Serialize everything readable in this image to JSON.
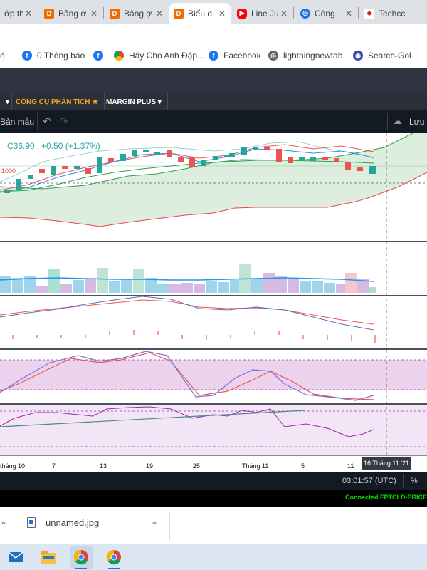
{
  "browser": {
    "tabs": [
      {
        "label": "ớp th",
        "icon": "doc-icon",
        "color": "#1a73e8"
      },
      {
        "label": "Bảng ợ",
        "icon": "d-icon",
        "color": "#ef6c00"
      },
      {
        "label": "Bảng ợ",
        "icon": "d-icon",
        "color": "#ef6c00"
      },
      {
        "label": "Biểu đ",
        "icon": "d-icon",
        "color": "#ef6c00"
      },
      {
        "label": "Line Ju",
        "icon": "youtube-icon",
        "color": "#ff0000"
      },
      {
        "label": "Công",
        "icon": "globe-icon",
        "color": "#1a73e8"
      },
      {
        "label": "Techcc",
        "icon": "techcombank-icon",
        "color": "#e11b22"
      }
    ],
    "bookmarks": [
      {
        "label": "ó",
        "icon": "none"
      },
      {
        "label": "0 Thông báo",
        "icon": "facebook-icon",
        "color": "#1877f2"
      },
      {
        "label": "",
        "icon": "facebook-icon",
        "color": "#1877f2"
      },
      {
        "label": "Hãy Cho Anh Đập...",
        "icon": "chrome-icon",
        "color": "#db4437"
      },
      {
        "label": "Facebook",
        "icon": "facebook-icon",
        "color": "#1877f2"
      },
      {
        "label": "lightningnewtab",
        "icon": "globe-icon",
        "color": "#5f6368"
      },
      {
        "label": "Search-Gol",
        "icon": "search-gol-icon",
        "color": "#3949ab"
      }
    ]
  },
  "app": {
    "menu": [
      {
        "label": "CÔNG CỤ PHÂN TÍCH ★",
        "color": "#f5a623"
      },
      {
        "label": "MARGIN PLUS ▾",
        "color": "#ffffff"
      }
    ],
    "chartbar": {
      "template": "Bản mẫu",
      "save": "Lưu"
    },
    "legend": {
      "price": "C36.90",
      "change": "+0.50 (+1.37%)",
      "level": "1000"
    },
    "xaxis_labels": [
      "tháng 10",
      "7",
      "13",
      "19",
      "25",
      "Tháng 11",
      "5",
      "11"
    ],
    "date_badge": "16 Tháng 11 '21",
    "footer": {
      "time": "03:01:57 (UTC)",
      "percent": "%",
      "status": "Connected FPTCLD-PRICE-"
    }
  },
  "downloads": {
    "file": "unnamed.jpg"
  },
  "colors": {
    "up": "#26a69a",
    "down": "#ef5350",
    "status": "#00e000"
  }
}
